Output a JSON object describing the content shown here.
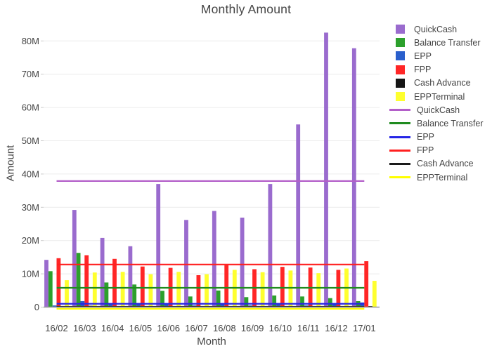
{
  "chart_data": {
    "type": "bar",
    "title": "Monthly Amount",
    "xlabel": "Month",
    "ylabel": "Amount",
    "categories": [
      "16/02",
      "16/03",
      "16/04",
      "16/05",
      "16/06",
      "16/07",
      "16/08",
      "16/09",
      "16/10",
      "16/11",
      "16/12",
      "17/01"
    ],
    "value_unit": "millions",
    "series": [
      {
        "name": "QuickCash",
        "color": "#9a6bce",
        "values": [
          14.2,
          29.2,
          20.8,
          18.3,
          37.0,
          26.2,
          28.9,
          26.9,
          37.0,
          54.9,
          82.5,
          77.8
        ]
      },
      {
        "name": "Balance Transfer",
        "color": "#2ca02c",
        "values": [
          10.8,
          16.3,
          7.4,
          6.8,
          4.9,
          3.2,
          5.0,
          3.0,
          3.5,
          3.2,
          2.7,
          1.8
        ]
      },
      {
        "name": "EPP",
        "color": "#2a5fcc",
        "values": [
          0.5,
          1.8,
          1.0,
          0.9,
          1.1,
          0.5,
          0.9,
          0.5,
          1.1,
          0.5,
          0.9,
          1.4
        ]
      },
      {
        "name": "FPP",
        "color": "#ff2626",
        "values": [
          14.7,
          15.6,
          14.5,
          12.2,
          11.8,
          9.6,
          12.6,
          11.4,
          12.1,
          11.9,
          11.2,
          13.8
        ]
      },
      {
        "name": "Cash Advance",
        "color": "#151515",
        "values": [
          0.3,
          0.4,
          0.3,
          0.2,
          0.2,
          0.2,
          0.2,
          0.2,
          0.2,
          0.2,
          0.2,
          0.3
        ]
      },
      {
        "name": "EPPTerminal",
        "color": "#feff2e",
        "values": [
          8.1,
          10.4,
          10.6,
          9.9,
          10.6,
          9.9,
          11.2,
          10.5,
          11.0,
          10.2,
          11.6,
          7.9
        ]
      }
    ],
    "lines": [
      {
        "name": "QuickCash",
        "color": "#b35fc9",
        "value": 37.9
      },
      {
        "name": "Balance Transfer",
        "color": "#1f8b1f",
        "value": 5.8
      },
      {
        "name": "EPP",
        "color": "#2525e6",
        "value": 1.0
      },
      {
        "name": "FPP",
        "color": "#ff2020",
        "value": 12.8
      },
      {
        "name": "Cash Advance",
        "color": "#1a1a1a",
        "value": 0.1
      },
      {
        "name": "EPPTerminal",
        "color": "#ffff00",
        "value": 0.0
      }
    ],
    "yticks": [
      "0",
      "10M",
      "20M",
      "30M",
      "40M",
      "50M",
      "60M",
      "70M",
      "80M"
    ],
    "ytick_values": [
      0,
      10,
      20,
      30,
      40,
      50,
      60,
      70,
      80
    ],
    "ylim": [
      0,
      86
    ],
    "grid": true,
    "legend_position": "right"
  }
}
